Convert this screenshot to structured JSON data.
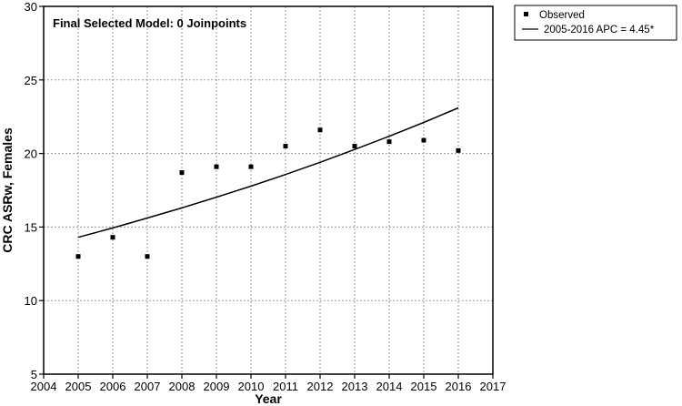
{
  "chart_data": {
    "type": "scatter",
    "annotation": "Final Selected Model: 0 Joinpoints",
    "xlabel": "Year",
    "ylabel": "CRC ASRw, Females",
    "xlim": [
      2004,
      2017
    ],
    "ylim": [
      5,
      30
    ],
    "x_ticks": [
      2004,
      2005,
      2006,
      2007,
      2008,
      2009,
      2010,
      2011,
      2012,
      2013,
      2014,
      2015,
      2016,
      2017
    ],
    "y_ticks": [
      5,
      10,
      15,
      20,
      25,
      30
    ],
    "grid": true,
    "legend_position": "outside-top-right",
    "series": [
      {
        "name": "Observed",
        "kind": "points",
        "marker": "square",
        "x": [
          2005,
          2006,
          2007,
          2008,
          2009,
          2010,
          2011,
          2012,
          2013,
          2014,
          2015,
          2016
        ],
        "y": [
          13.0,
          14.3,
          13.0,
          18.7,
          19.1,
          19.1,
          20.5,
          21.6,
          20.5,
          20.8,
          20.9,
          20.2
        ]
      },
      {
        "name": "2005-2016 APC  = 4.45*",
        "kind": "line",
        "x": [
          2005,
          2006,
          2007,
          2008,
          2009,
          2010,
          2011,
          2012,
          2013,
          2014,
          2015,
          2016
        ],
        "y": [
          14.3,
          14.94,
          15.61,
          16.3,
          17.03,
          17.78,
          18.57,
          19.4,
          20.27,
          21.17,
          22.11,
          23.1
        ]
      }
    ]
  }
}
